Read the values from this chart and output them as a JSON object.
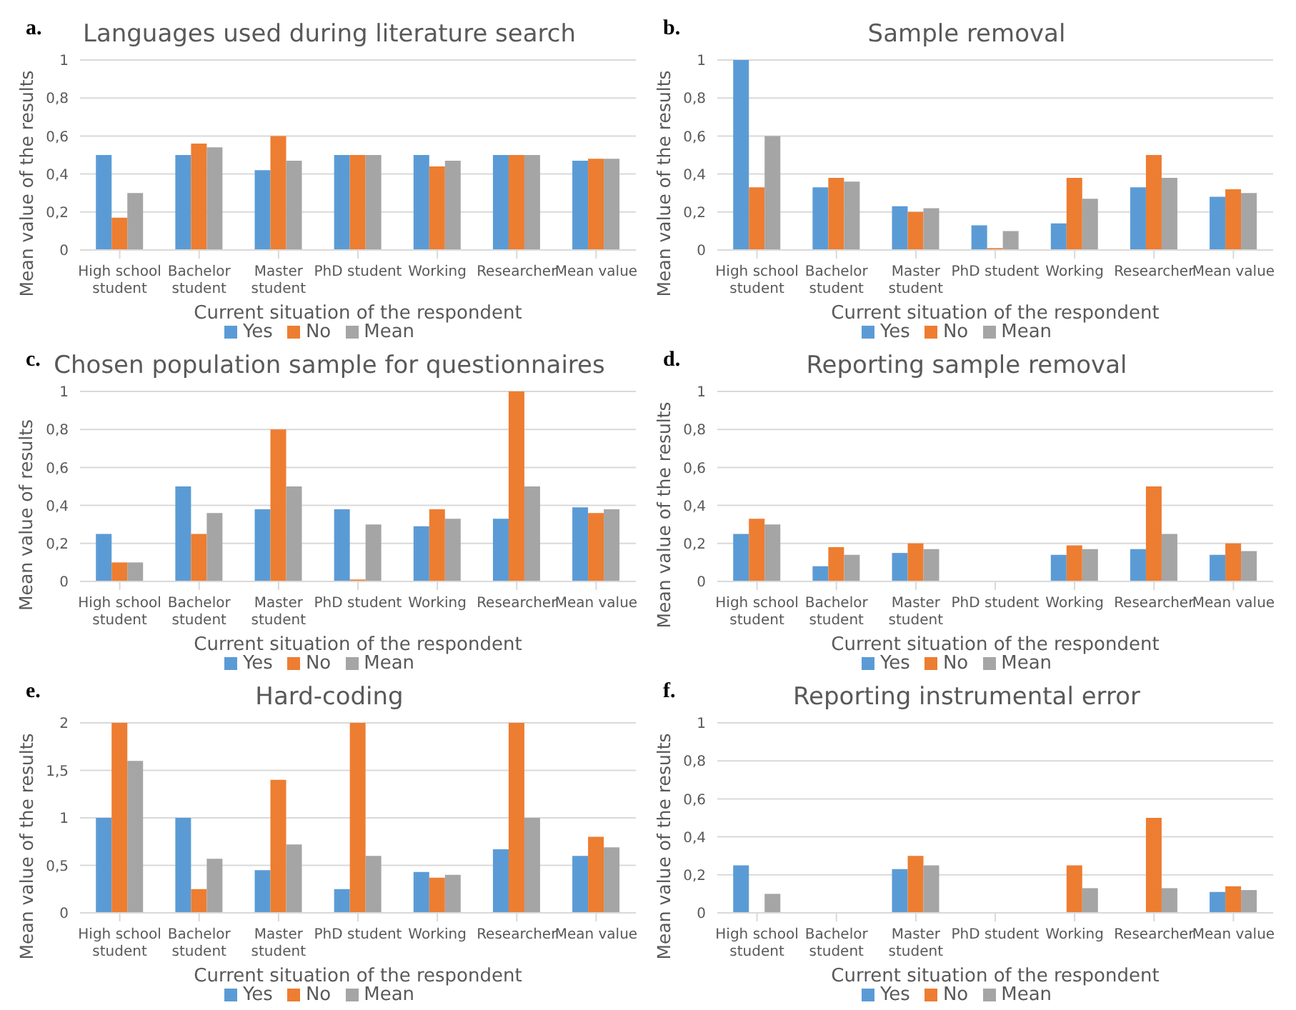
{
  "chart_data": [
    {
      "type": "bar",
      "title": "Languages used during literature search",
      "annotations": [
        "a."
      ],
      "xlabel": "Current situation of the respondent",
      "ylabel": "Mean value of the results",
      "categories": [
        "High school student",
        "Bachelor student",
        "Master student",
        "PhD student",
        "Working",
        "Researcher",
        "Mean value"
      ],
      "series": [
        {
          "name": "Yes",
          "color": "#5b9bd5",
          "values": [
            0.5,
            0.5,
            0.42,
            0.5,
            0.5,
            0.5,
            0.47
          ]
        },
        {
          "name": "No",
          "color": "#ed7d31",
          "values": [
            0.17,
            0.56,
            0.6,
            0.5,
            0.44,
            0.5,
            0.48
          ]
        },
        {
          "name": "Mean",
          "color": "#a5a5a5",
          "values": [
            0.3,
            0.54,
            0.47,
            0.5,
            0.47,
            0.5,
            0.48
          ]
        }
      ],
      "ylim": [
        0,
        1
      ],
      "yticks": [
        0,
        {
          "value": 0.2,
          "label": "0,2"
        },
        {
          "value": 0.4,
          "label": "0,4"
        },
        {
          "value": 0.6,
          "label": "0,6"
        },
        {
          "value": 0.8,
          "label": "0,8"
        },
        1
      ],
      "grid": "y",
      "legend": "bottom"
    },
    {
      "type": "bar",
      "title": "Sample removal",
      "annotations": [
        "b."
      ],
      "xlabel": "Current situation of the respondent",
      "ylabel": "Mean value of the results",
      "categories": [
        "High school student",
        "Bachelor student",
        "Master student",
        "PhD student",
        "Working",
        "Researcher",
        "Mean value"
      ],
      "series": [
        {
          "name": "Yes",
          "color": "#5b9bd5",
          "values": [
            1,
            0.33,
            0.23,
            0.13,
            0.14,
            0.33,
            0.28
          ]
        },
        {
          "name": "No",
          "color": "#ed7d31",
          "values": [
            0.33,
            0.38,
            0.2,
            0.01,
            0.38,
            0.5,
            0.32
          ]
        },
        {
          "name": "Mean",
          "color": "#a5a5a5",
          "values": [
            0.6,
            0.36,
            0.22,
            0.1,
            0.27,
            0.38,
            0.3
          ]
        }
      ],
      "ylim": [
        0,
        1
      ],
      "yticks": [
        0,
        {
          "value": 0.2,
          "label": "0,2"
        },
        {
          "value": 0.4,
          "label": "0,4"
        },
        {
          "value": 0.6,
          "label": "0,6"
        },
        {
          "value": 0.8,
          "label": "0,8"
        },
        1
      ],
      "grid": "y",
      "legend": "bottom"
    },
    {
      "type": "bar",
      "title": "Chosen population sample for questionnaires",
      "annotations": [
        "c."
      ],
      "xlabel": "Current situation of the respondent",
      "ylabel": "Mean value of results",
      "categories": [
        "High school student",
        "Bachelor student",
        "Master student",
        "PhD student",
        "Working",
        "Researcher",
        "Mean value"
      ],
      "series": [
        {
          "name": "Yes",
          "color": "#5b9bd5",
          "values": [
            0.25,
            0.5,
            0.38,
            0.38,
            0.29,
            0.33,
            0.39
          ]
        },
        {
          "name": "No",
          "color": "#ed7d31",
          "values": [
            0.1,
            0.25,
            0.8,
            0.01,
            0.38,
            1,
            0.36
          ]
        },
        {
          "name": "Mean",
          "color": "#a5a5a5",
          "values": [
            0.1,
            0.36,
            0.5,
            0.3,
            0.33,
            0.5,
            0.38
          ]
        }
      ],
      "ylim": [
        0,
        1
      ],
      "yticks": [
        0,
        {
          "value": 0.2,
          "label": "0,2"
        },
        {
          "value": 0.4,
          "label": "0,4"
        },
        {
          "value": 0.6,
          "label": "0,6"
        },
        {
          "value": 0.8,
          "label": "0,8"
        },
        1
      ],
      "grid": "y",
      "legend": "bottom"
    },
    {
      "type": "bar",
      "title": "Reporting sample removal",
      "annotations": [
        "d."
      ],
      "xlabel": "Current situation of the respondent",
      "ylabel": "Mean value of the results",
      "categories": [
        "High school student",
        "Bachelor student",
        "Master student",
        "PhD student",
        "Working",
        "Researcher",
        "Mean value"
      ],
      "series": [
        {
          "name": "Yes",
          "color": "#5b9bd5",
          "values": [
            0.25,
            0.08,
            0.15,
            0,
            0.14,
            0.17,
            0.14
          ]
        },
        {
          "name": "No",
          "color": "#ed7d31",
          "values": [
            0.33,
            0.18,
            0.2,
            0,
            0.19,
            0.5,
            0.2
          ]
        },
        {
          "name": "Mean",
          "color": "#a5a5a5",
          "values": [
            0.3,
            0.14,
            0.17,
            0,
            0.17,
            0.25,
            0.16
          ]
        }
      ],
      "ylim": [
        0,
        1
      ],
      "yticks": [
        0,
        {
          "value": 0.2,
          "label": "0,2"
        },
        {
          "value": 0.4,
          "label": "0,4"
        },
        {
          "value": 0.6,
          "label": "0,6"
        },
        {
          "value": 0.8,
          "label": "0,8"
        },
        1
      ],
      "grid": "y",
      "legend": "bottom"
    },
    {
      "type": "bar",
      "title": "Hard-coding",
      "annotations": [
        "e."
      ],
      "xlabel": "Current situation of the respondent",
      "ylabel": "Mean value of the results",
      "categories": [
        "High school student",
        "Bachelor student",
        "Master student",
        "PhD student",
        "Working",
        "Researcher",
        "Mean value"
      ],
      "series": [
        {
          "name": "Yes",
          "color": "#5b9bd5",
          "values": [
            1,
            1,
            0.45,
            0.25,
            0.43,
            0.67,
            0.6
          ]
        },
        {
          "name": "No",
          "color": "#ed7d31",
          "values": [
            2,
            0.25,
            1.4,
            2,
            0.37,
            2,
            0.8
          ]
        },
        {
          "name": "Mean",
          "color": "#a5a5a5",
          "values": [
            1.6,
            0.57,
            0.72,
            0.6,
            0.4,
            1,
            0.69
          ]
        }
      ],
      "ylim": [
        0,
        2
      ],
      "yticks": [
        0,
        {
          "value": 0.5,
          "label": "0,5"
        },
        1,
        {
          "value": 1.5,
          "label": "1,5"
        },
        2
      ],
      "grid": "y",
      "legend": "bottom"
    },
    {
      "type": "bar",
      "title": "Reporting instrumental error",
      "annotations": [
        "f."
      ],
      "xlabel": "Current situation of the respondent",
      "ylabel": "Mean value of the results",
      "categories": [
        "High school student",
        "Bachelor student",
        "Master student",
        "PhD student",
        "Working",
        "Researcher",
        "Mean value"
      ],
      "series": [
        {
          "name": "Yes",
          "color": "#5b9bd5",
          "values": [
            0.25,
            0,
            0.23,
            0,
            0,
            0,
            0.11
          ]
        },
        {
          "name": "No",
          "color": "#ed7d31",
          "values": [
            0,
            0,
            0.3,
            0,
            0.25,
            0.5,
            0.14
          ]
        },
        {
          "name": "Mean",
          "color": "#a5a5a5",
          "values": [
            0.1,
            0,
            0.25,
            0,
            0.13,
            0.13,
            0.12
          ]
        }
      ],
      "ylim": [
        0,
        1
      ],
      "yticks": [
        0,
        {
          "value": 0.2,
          "label": "0,2"
        },
        {
          "value": 0.4,
          "label": "0,4"
        },
        {
          "value": 0.6,
          "label": "0,6"
        },
        {
          "value": 0.8,
          "label": "0,8"
        },
        1
      ],
      "grid": "y",
      "legend": "bottom"
    }
  ]
}
